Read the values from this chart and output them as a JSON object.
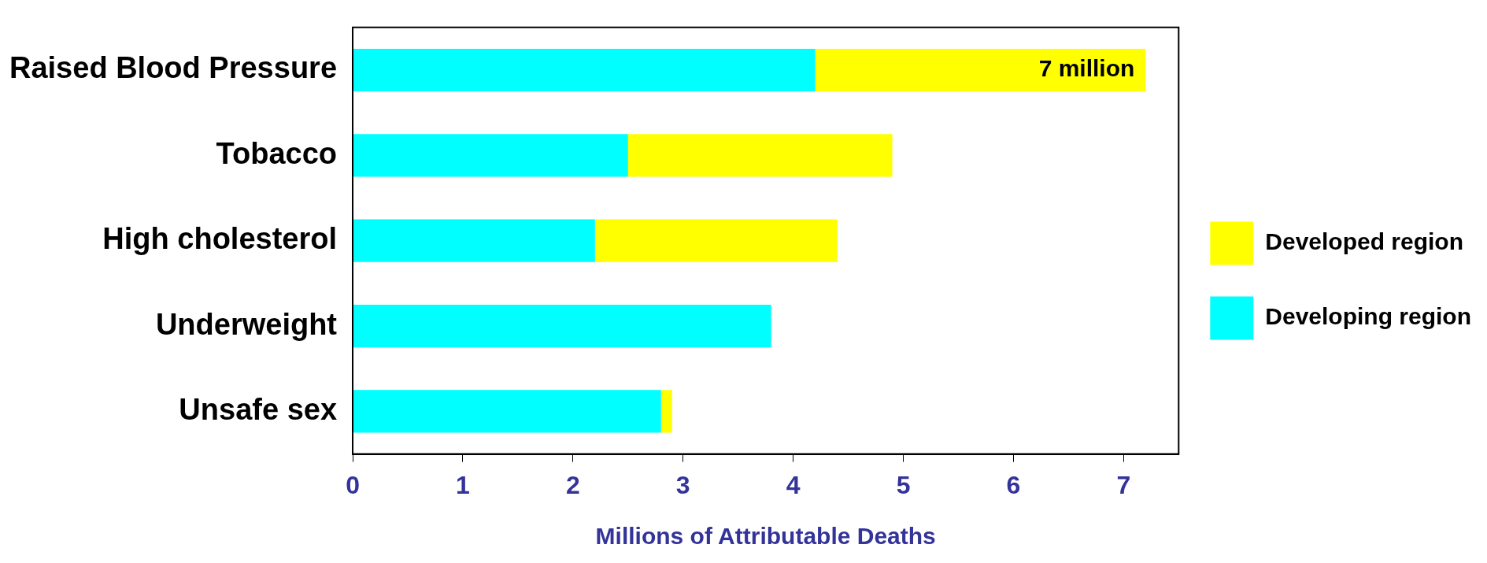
{
  "chart_data": {
    "type": "bar",
    "orientation": "horizontal",
    "stacked": true,
    "xlabel": "Millions of Attributable Deaths",
    "categories": [
      "Raised Blood Pressure",
      "Tobacco",
      "High cholesterol",
      "Underweight",
      "Unsafe sex"
    ],
    "series": [
      {
        "name": "Developing region",
        "color": "#00ffff",
        "values": [
          4.2,
          2.5,
          2.2,
          3.8,
          2.8
        ]
      },
      {
        "name": "Developed region",
        "color": "#ffff00",
        "values": [
          3.0,
          2.4,
          2.2,
          0,
          0.1
        ]
      }
    ],
    "xlim": [
      0,
      7.5
    ],
    "xticks": [
      0,
      1,
      2,
      3,
      4,
      5,
      6,
      7
    ],
    "grid": false,
    "legend": "right",
    "annotations": [
      "7 million"
    ]
  }
}
